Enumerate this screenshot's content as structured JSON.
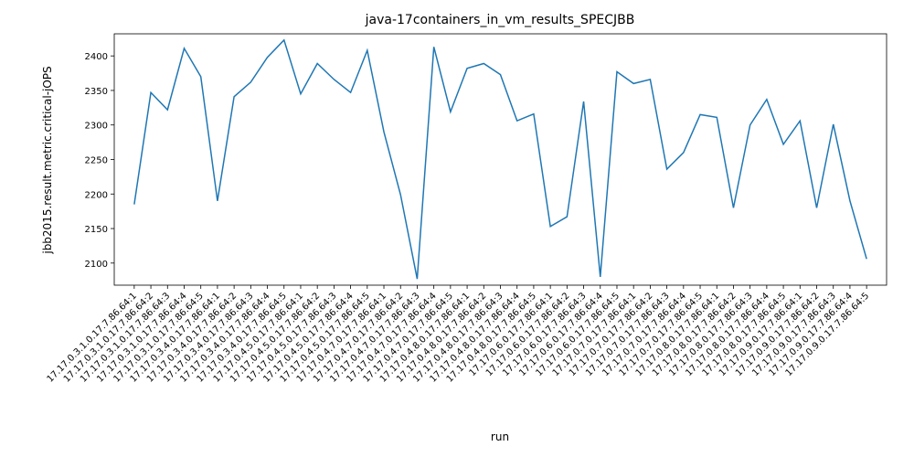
{
  "chart_data": {
    "type": "line",
    "title": "java-17containers_in_vm_results_SPECJBB",
    "xlabel": "run",
    "ylabel": "jbb2015.result.metric.critical-jOPS",
    "series_color": "#1f77b4",
    "grid": false,
    "ylim": [
      2068,
      2432
    ],
    "yticks": [
      2100,
      2150,
      2200,
      2250,
      2300,
      2350,
      2400
    ],
    "categories": [
      "17.17.0.3.1.0.17.7.86.64:1",
      "17.17.0.3.1.0.17.7.86.64:2",
      "17.17.0.3.1.0.17.7.86.64:3",
      "17.17.0.3.1.0.17.7.86.64:4",
      "17.17.0.3.1.0.17.7.86.64:5",
      "17.17.0.3.4.0.17.7.86.64:1",
      "17.17.0.3.4.0.17.7.86.64:2",
      "17.17.0.3.4.0.17.7.86.64:3",
      "17.17.0.3.4.0.17.7.86.64:4",
      "17.17.0.3.4.0.17.7.86.64:5",
      "17.17.0.4.5.0.17.7.86.64:1",
      "17.17.0.4.5.0.17.7.86.64:2",
      "17.17.0.4.5.0.17.7.86.64:3",
      "17.17.0.4.5.0.17.7.86.64:4",
      "17.17.0.4.5.0.17.7.86.64:5",
      "17.17.0.4.7.0.17.7.86.64:1",
      "17.17.0.4.7.0.17.7.86.64:2",
      "17.17.0.4.7.0.17.7.86.64:3",
      "17.17.0.4.7.0.17.7.86.64:4",
      "17.17.0.4.7.0.17.7.86.64:5",
      "17.17.0.4.8.0.17.7.86.64:1",
      "17.17.0.4.8.0.17.7.86.64:2",
      "17.17.0.4.8.0.17.7.86.64:3",
      "17.17.0.4.8.0.17.7.86.64:4",
      "17.17.0.4.8.0.17.7.86.64:5",
      "17.17.0.6.0.17.7.86.64:1",
      "17.17.0.6.0.17.7.86.64:2",
      "17.17.0.6.0.17.7.86.64:3",
      "17.17.0.6.0.17.7.86.64:4",
      "17.17.0.6.0.17.7.86.64:5",
      "17.17.0.7.0.17.7.86.64:1",
      "17.17.0.7.0.17.7.86.64:2",
      "17.17.0.7.0.17.7.86.64:3",
      "17.17.0.7.0.17.7.86.64:4",
      "17.17.0.7.0.17.7.86.64:5",
      "17.17.0.8.0.17.7.86.64:1",
      "17.17.0.8.0.17.7.86.64:2",
      "17.17.0.8.0.17.7.86.64:3",
      "17.17.0.8.0.17.7.86.64:4",
      "17.17.0.8.0.17.7.86.64:5",
      "17.17.0.9.0.17.7.86.64:1",
      "17.17.0.9.0.17.7.86.64:2",
      "17.17.0.9.0.17.7.86.64:3",
      "17.17.0.9.0.17.7.86.64:4",
      "17.17.0.9.0.17.7.86.64:5"
    ],
    "values": [
      2185,
      2347,
      2322,
      2411,
      2370,
      2190,
      2341,
      2362,
      2398,
      2423,
      2345,
      2389,
      2366,
      2347,
      2408,
      2290,
      2199,
      2077,
      2413,
      2319,
      2382,
      2389,
      2373,
      2306,
      2316,
      2153,
      2167,
      2334,
      2080,
      2377,
      2360,
      2366,
      2236,
      2260,
      2315,
      2311,
      2180,
      2300,
      2337,
      2272,
      2306,
      2180,
      2301,
      2190,
      2106
    ]
  }
}
